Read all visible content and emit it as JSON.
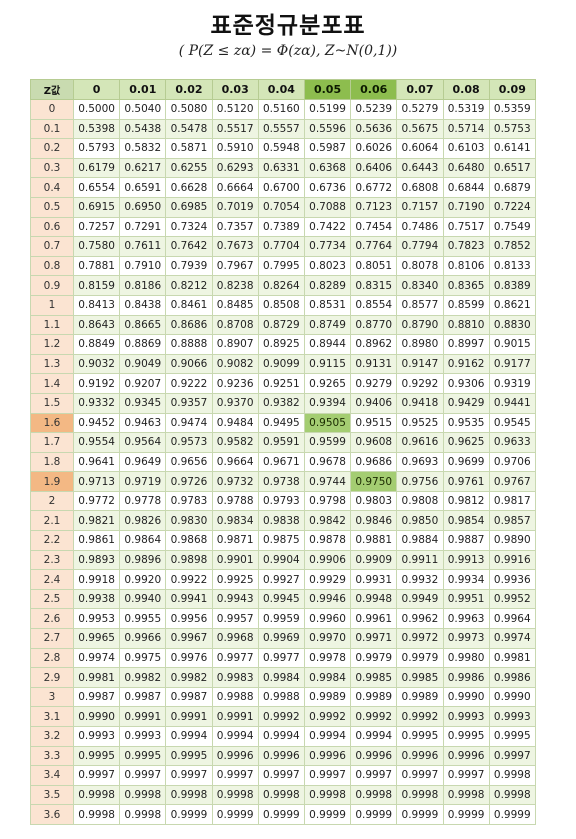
{
  "title": "표준정규분포표",
  "formula": "( P(Z ≤ zα) = Φ(zα),  Z~N(0,1))",
  "table": {
    "corner": "Z값",
    "columns": [
      "0",
      "0.01",
      "0.02",
      "0.03",
      "0.04",
      "0.05",
      "0.06",
      "0.07",
      "0.08",
      "0.09"
    ],
    "highlight_columns": [
      5,
      6
    ],
    "highlight_rows": [
      "1.6",
      "1.9"
    ],
    "highlight_cells": [
      [
        16,
        5
      ],
      [
        19,
        6
      ]
    ],
    "colors": {
      "header": "#d4e6b8",
      "header_highlight": "#8dbd4e",
      "z_column": "#fbe4d2",
      "z_highlight": "#f3b884",
      "cell_highlight": "#a4cd72",
      "stripe": "#eef5e2"
    },
    "rows": [
      {
        "z": "0",
        "v": [
          "0.5000",
          "0.5040",
          "0.5080",
          "0.5120",
          "0.5160",
          "0.5199",
          "0.5239",
          "0.5279",
          "0.5319",
          "0.5359"
        ]
      },
      {
        "z": "0.1",
        "v": [
          "0.5398",
          "0.5438",
          "0.5478",
          "0.5517",
          "0.5557",
          "0.5596",
          "0.5636",
          "0.5675",
          "0.5714",
          "0.5753"
        ]
      },
      {
        "z": "0.2",
        "v": [
          "0.5793",
          "0.5832",
          "0.5871",
          "0.5910",
          "0.5948",
          "0.5987",
          "0.6026",
          "0.6064",
          "0.6103",
          "0.6141"
        ]
      },
      {
        "z": "0.3",
        "v": [
          "0.6179",
          "0.6217",
          "0.6255",
          "0.6293",
          "0.6331",
          "0.6368",
          "0.6406",
          "0.6443",
          "0.6480",
          "0.6517"
        ]
      },
      {
        "z": "0.4",
        "v": [
          "0.6554",
          "0.6591",
          "0.6628",
          "0.6664",
          "0.6700",
          "0.6736",
          "0.6772",
          "0.6808",
          "0.6844",
          "0.6879"
        ]
      },
      {
        "z": "0.5",
        "v": [
          "0.6915",
          "0.6950",
          "0.6985",
          "0.7019",
          "0.7054",
          "0.7088",
          "0.7123",
          "0.7157",
          "0.7190",
          "0.7224"
        ]
      },
      {
        "z": "0.6",
        "v": [
          "0.7257",
          "0.7291",
          "0.7324",
          "0.7357",
          "0.7389",
          "0.7422",
          "0.7454",
          "0.7486",
          "0.7517",
          "0.7549"
        ]
      },
      {
        "z": "0.7",
        "v": [
          "0.7580",
          "0.7611",
          "0.7642",
          "0.7673",
          "0.7704",
          "0.7734",
          "0.7764",
          "0.7794",
          "0.7823",
          "0.7852"
        ]
      },
      {
        "z": "0.8",
        "v": [
          "0.7881",
          "0.7910",
          "0.7939",
          "0.7967",
          "0.7995",
          "0.8023",
          "0.8051",
          "0.8078",
          "0.8106",
          "0.8133"
        ]
      },
      {
        "z": "0.9",
        "v": [
          "0.8159",
          "0.8186",
          "0.8212",
          "0.8238",
          "0.8264",
          "0.8289",
          "0.8315",
          "0.8340",
          "0.8365",
          "0.8389"
        ]
      },
      {
        "z": "1",
        "v": [
          "0.8413",
          "0.8438",
          "0.8461",
          "0.8485",
          "0.8508",
          "0.8531",
          "0.8554",
          "0.8577",
          "0.8599",
          "0.8621"
        ]
      },
      {
        "z": "1.1",
        "v": [
          "0.8643",
          "0.8665",
          "0.8686",
          "0.8708",
          "0.8729",
          "0.8749",
          "0.8770",
          "0.8790",
          "0.8810",
          "0.8830"
        ]
      },
      {
        "z": "1.2",
        "v": [
          "0.8849",
          "0.8869",
          "0.8888",
          "0.8907",
          "0.8925",
          "0.8944",
          "0.8962",
          "0.8980",
          "0.8997",
          "0.9015"
        ]
      },
      {
        "z": "1.3",
        "v": [
          "0.9032",
          "0.9049",
          "0.9066",
          "0.9082",
          "0.9099",
          "0.9115",
          "0.9131",
          "0.9147",
          "0.9162",
          "0.9177"
        ]
      },
      {
        "z": "1.4",
        "v": [
          "0.9192",
          "0.9207",
          "0.9222",
          "0.9236",
          "0.9251",
          "0.9265",
          "0.9279",
          "0.9292",
          "0.9306",
          "0.9319"
        ]
      },
      {
        "z": "1.5",
        "v": [
          "0.9332",
          "0.9345",
          "0.9357",
          "0.9370",
          "0.9382",
          "0.9394",
          "0.9406",
          "0.9418",
          "0.9429",
          "0.9441"
        ]
      },
      {
        "z": "1.6",
        "v": [
          "0.9452",
          "0.9463",
          "0.9474",
          "0.9484",
          "0.9495",
          "0.9505",
          "0.9515",
          "0.9525",
          "0.9535",
          "0.9545"
        ]
      },
      {
        "z": "1.7",
        "v": [
          "0.9554",
          "0.9564",
          "0.9573",
          "0.9582",
          "0.9591",
          "0.9599",
          "0.9608",
          "0.9616",
          "0.9625",
          "0.9633"
        ]
      },
      {
        "z": "1.8",
        "v": [
          "0.9641",
          "0.9649",
          "0.9656",
          "0.9664",
          "0.9671",
          "0.9678",
          "0.9686",
          "0.9693",
          "0.9699",
          "0.9706"
        ]
      },
      {
        "z": "1.9",
        "v": [
          "0.9713",
          "0.9719",
          "0.9726",
          "0.9732",
          "0.9738",
          "0.9744",
          "0.9750",
          "0.9756",
          "0.9761",
          "0.9767"
        ]
      },
      {
        "z": "2",
        "v": [
          "0.9772",
          "0.9778",
          "0.9783",
          "0.9788",
          "0.9793",
          "0.9798",
          "0.9803",
          "0.9808",
          "0.9812",
          "0.9817"
        ]
      },
      {
        "z": "2.1",
        "v": [
          "0.9821",
          "0.9826",
          "0.9830",
          "0.9834",
          "0.9838",
          "0.9842",
          "0.9846",
          "0.9850",
          "0.9854",
          "0.9857"
        ]
      },
      {
        "z": "2.2",
        "v": [
          "0.9861",
          "0.9864",
          "0.9868",
          "0.9871",
          "0.9875",
          "0.9878",
          "0.9881",
          "0.9884",
          "0.9887",
          "0.9890"
        ]
      },
      {
        "z": "2.3",
        "v": [
          "0.9893",
          "0.9896",
          "0.9898",
          "0.9901",
          "0.9904",
          "0.9906",
          "0.9909",
          "0.9911",
          "0.9913",
          "0.9916"
        ]
      },
      {
        "z": "2.4",
        "v": [
          "0.9918",
          "0.9920",
          "0.9922",
          "0.9925",
          "0.9927",
          "0.9929",
          "0.9931",
          "0.9932",
          "0.9934",
          "0.9936"
        ]
      },
      {
        "z": "2.5",
        "v": [
          "0.9938",
          "0.9940",
          "0.9941",
          "0.9943",
          "0.9945",
          "0.9946",
          "0.9948",
          "0.9949",
          "0.9951",
          "0.9952"
        ]
      },
      {
        "z": "2.6",
        "v": [
          "0.9953",
          "0.9955",
          "0.9956",
          "0.9957",
          "0.9959",
          "0.9960",
          "0.9961",
          "0.9962",
          "0.9963",
          "0.9964"
        ]
      },
      {
        "z": "2.7",
        "v": [
          "0.9965",
          "0.9966",
          "0.9967",
          "0.9968",
          "0.9969",
          "0.9970",
          "0.9971",
          "0.9972",
          "0.9973",
          "0.9974"
        ]
      },
      {
        "z": "2.8",
        "v": [
          "0.9974",
          "0.9975",
          "0.9976",
          "0.9977",
          "0.9977",
          "0.9978",
          "0.9979",
          "0.9979",
          "0.9980",
          "0.9981"
        ]
      },
      {
        "z": "2.9",
        "v": [
          "0.9981",
          "0.9982",
          "0.9982",
          "0.9983",
          "0.9984",
          "0.9984",
          "0.9985",
          "0.9985",
          "0.9986",
          "0.9986"
        ]
      },
      {
        "z": "3",
        "v": [
          "0.9987",
          "0.9987",
          "0.9987",
          "0.9988",
          "0.9988",
          "0.9989",
          "0.9989",
          "0.9989",
          "0.9990",
          "0.9990"
        ]
      },
      {
        "z": "3.1",
        "v": [
          "0.9990",
          "0.9991",
          "0.9991",
          "0.9991",
          "0.9992",
          "0.9992",
          "0.9992",
          "0.9992",
          "0.9993",
          "0.9993"
        ]
      },
      {
        "z": "3.2",
        "v": [
          "0.9993",
          "0.9993",
          "0.9994",
          "0.9994",
          "0.9994",
          "0.9994",
          "0.9994",
          "0.9995",
          "0.9995",
          "0.9995"
        ]
      },
      {
        "z": "3.3",
        "v": [
          "0.9995",
          "0.9995",
          "0.9995",
          "0.9996",
          "0.9996",
          "0.9996",
          "0.9996",
          "0.9996",
          "0.9996",
          "0.9997"
        ]
      },
      {
        "z": "3.4",
        "v": [
          "0.9997",
          "0.9997",
          "0.9997",
          "0.9997",
          "0.9997",
          "0.9997",
          "0.9997",
          "0.9997",
          "0.9997",
          "0.9998"
        ]
      },
      {
        "z": "3.5",
        "v": [
          "0.9998",
          "0.9998",
          "0.9998",
          "0.9998",
          "0.9998",
          "0.9998",
          "0.9998",
          "0.9998",
          "0.9998",
          "0.9998"
        ]
      },
      {
        "z": "3.6",
        "v": [
          "0.9998",
          "0.9998",
          "0.9999",
          "0.9999",
          "0.9999",
          "0.9999",
          "0.9999",
          "0.9999",
          "0.9999",
          "0.9999"
        ]
      }
    ]
  }
}
